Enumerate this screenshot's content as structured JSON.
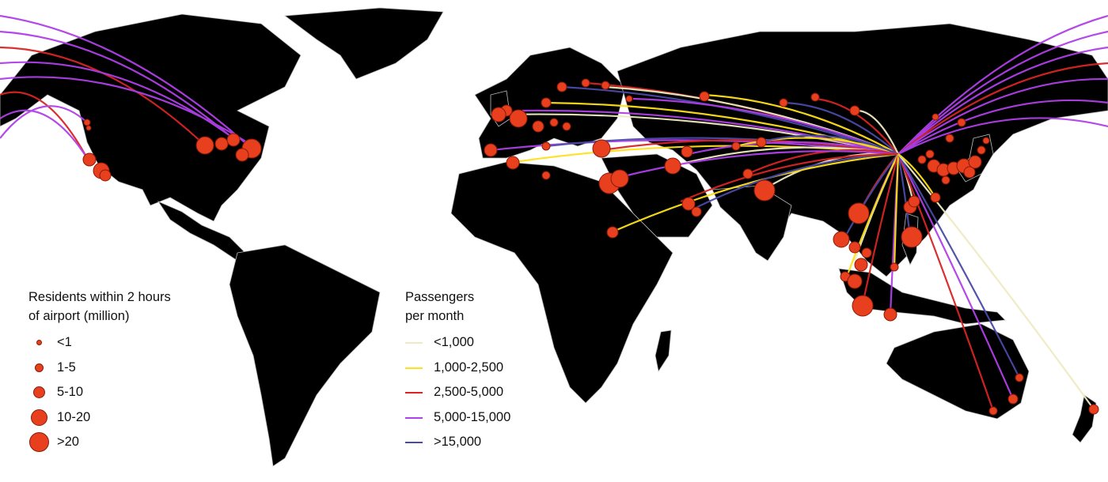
{
  "map": {
    "land_color": "#000000",
    "border_color": "#bdbdbd",
    "ocean_color": "#ffffff",
    "airport_color": "#e8401e",
    "airport_stroke": "#8a1a08"
  },
  "legend_size": {
    "title_line1": "Residents within 2 hours",
    "title_line2": "of airport (million)",
    "items": [
      {
        "label": "<1",
        "size_rank": 1
      },
      {
        "label": "1-5",
        "size_rank": 2
      },
      {
        "label": "5-10",
        "size_rank": 3
      },
      {
        "label": "10-20",
        "size_rank": 4
      },
      {
        "label": ">20",
        "size_rank": 5
      }
    ]
  },
  "legend_pax": {
    "title_line1": "Passengers",
    "title_line2": "per month",
    "items": [
      {
        "label": "<1,000",
        "color": "#efeac2"
      },
      {
        "label": "1,000-2,500",
        "color": "#ffe11a"
      },
      {
        "label": "2,500-5,000",
        "color": "#d92424"
      },
      {
        "label": "5,000-15,000",
        "color": "#b040e8"
      },
      {
        "label": ">15,000",
        "color": "#4a4aa8"
      }
    ]
  }
}
